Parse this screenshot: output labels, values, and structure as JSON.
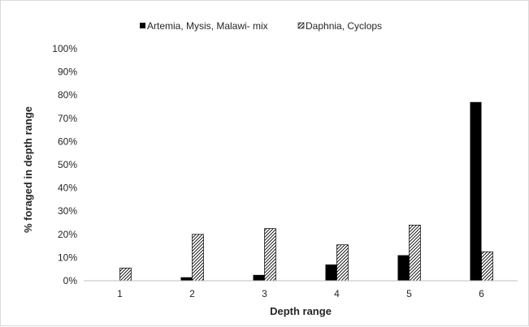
{
  "chart_data": {
    "type": "bar",
    "title": "",
    "xlabel": "Depth range",
    "ylabel": "% foraged in depth range",
    "categories": [
      "1",
      "2",
      "3",
      "4",
      "5",
      "6"
    ],
    "ylim": [
      0,
      100
    ],
    "ytick_step": 10,
    "y_tick_format": "percent",
    "grid": false,
    "legend_position": "top",
    "series": [
      {
        "name": "Artemia, Mysis, Malawi- mix",
        "values": [
          0,
          1.5,
          2.5,
          7,
          11,
          77
        ],
        "fill": "solid",
        "color": "#000000"
      },
      {
        "name": "Daphnia, Cyclops",
        "values": [
          5.5,
          20,
          22.5,
          15.5,
          24,
          12.5
        ],
        "fill": "diagonal-hatch",
        "color": "#000000"
      }
    ]
  }
}
